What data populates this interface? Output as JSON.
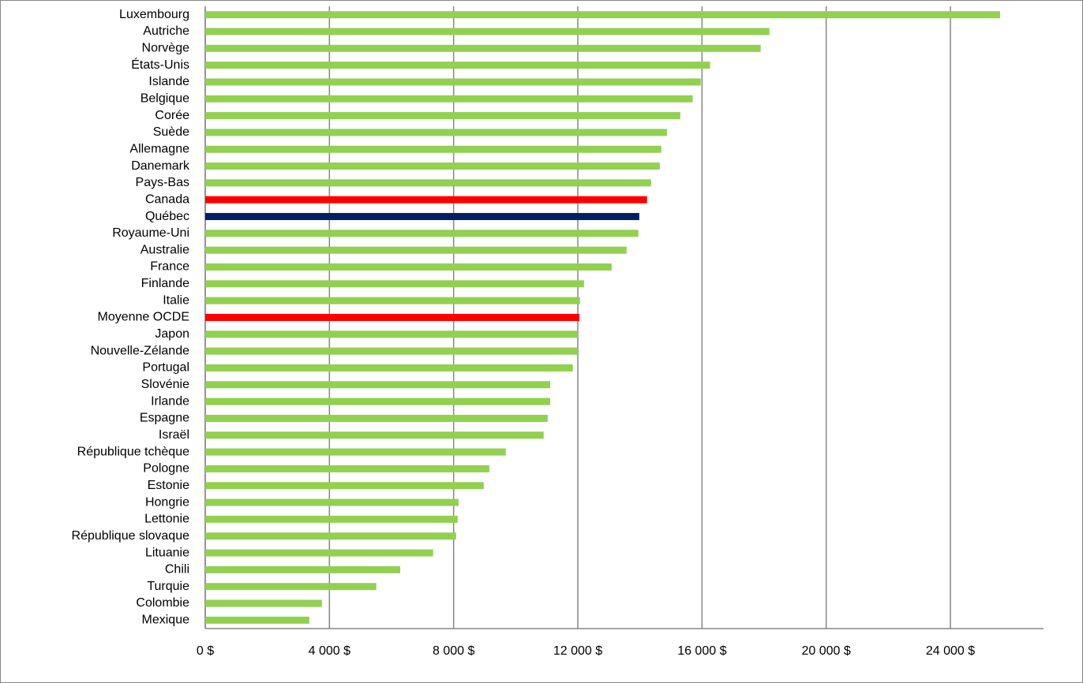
{
  "chart_data": {
    "type": "hbar",
    "categories": [
      "Luxembourg",
      "Autriche",
      "Norvège",
      "États-Unis",
      "Islande",
      "Belgique",
      "Corée",
      "Suède",
      "Allemagne",
      "Danemark",
      "Pays-Bas",
      "Canada",
      "Québec",
      "Royaume-Uni",
      "Australie",
      "France",
      "Finlande",
      "Italie",
      "Moyenne OCDE",
      "Japon",
      "Nouvelle-Zélande",
      "Portugal",
      "Slovénie",
      "Irlande",
      "Espagne",
      "Israël",
      "République tchèque",
      "Pologne",
      "Estonie",
      "Hongrie",
      "Lettonie",
      "République slovaque",
      "Lituanie",
      "Chili",
      "Turquie",
      "Colombie",
      "Mexique"
    ],
    "values": [
      25600,
      18170,
      17890,
      16260,
      15960,
      15700,
      15300,
      14870,
      14690,
      14640,
      14360,
      14230,
      13980,
      13950,
      13570,
      13090,
      12200,
      12070,
      12050,
      12000,
      12000,
      11840,
      11110,
      11110,
      11030,
      10900,
      9680,
      9150,
      8970,
      8160,
      8130,
      8080,
      7340,
      6280,
      5510,
      3760,
      3350
    ],
    "colors": [
      "#92d050",
      "#92d050",
      "#92d050",
      "#92d050",
      "#92d050",
      "#92d050",
      "#92d050",
      "#92d050",
      "#92d050",
      "#92d050",
      "#92d050",
      "#ff0000",
      "#002060",
      "#92d050",
      "#92d050",
      "#92d050",
      "#92d050",
      "#92d050",
      "#ff0000",
      "#92d050",
      "#92d050",
      "#92d050",
      "#92d050",
      "#92d050",
      "#92d050",
      "#92d050",
      "#92d050",
      "#92d050",
      "#92d050",
      "#92d050",
      "#92d050",
      "#92d050",
      "#92d050",
      "#92d050",
      "#92d050",
      "#92d050",
      "#92d050"
    ],
    "xlim": [
      0,
      27000
    ],
    "xticks": [
      {
        "value": 0,
        "label": "0 $"
      },
      {
        "value": 4000,
        "label": "4 000 $"
      },
      {
        "value": 8000,
        "label": "8 000 $"
      },
      {
        "value": 12000,
        "label": "12 000 $"
      },
      {
        "value": 16000,
        "label": "16 000 $"
      },
      {
        "value": 20000,
        "label": "20 000 $"
      },
      {
        "value": 24000,
        "label": "24 000 $"
      }
    ],
    "grid": true
  }
}
